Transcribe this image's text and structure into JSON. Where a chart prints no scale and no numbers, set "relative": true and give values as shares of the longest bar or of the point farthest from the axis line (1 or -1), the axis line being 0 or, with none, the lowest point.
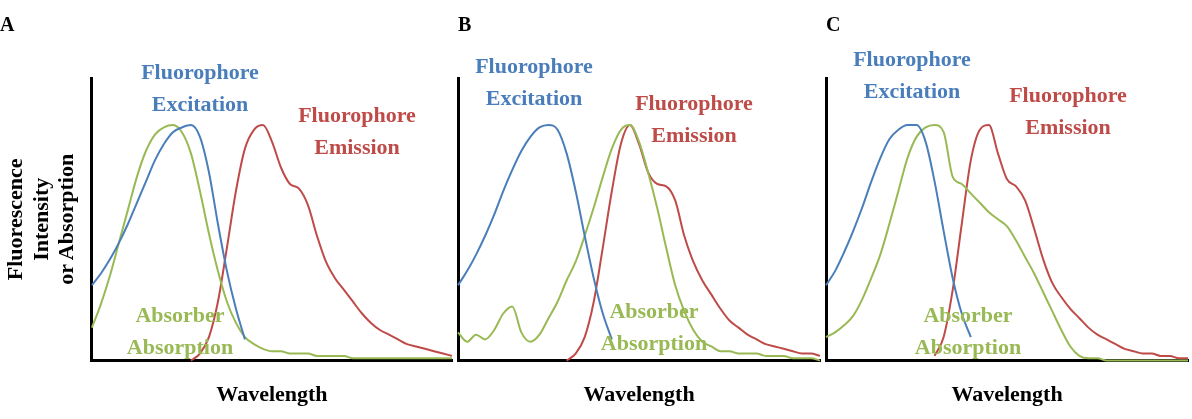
{
  "chart_data": [
    {
      "type": "line",
      "title": "A",
      "xlabel": "Wavelength",
      "ylabel": "Fluorescence\nIntensity\nor Absorption",
      "relative": true,
      "legend": false,
      "grid": false,
      "marker": "none",
      "tick_labels": false,
      "categories": [
        null,
        null,
        null,
        null,
        null,
        null,
        null,
        null,
        null,
        null,
        null,
        null,
        null,
        null,
        null,
        null,
        null,
        null,
        null,
        null,
        null,
        null,
        null,
        null,
        null,
        null,
        null,
        null,
        null,
        null,
        null,
        null,
        null,
        null,
        null,
        null,
        null,
        null,
        null,
        null,
        null
      ],
      "series": [
        {
          "name": "Fluorophore Excitation",
          "color": "#4a7ebb",
          "values": [
            0.32,
            0.37,
            0.43,
            0.5,
            0.58,
            0.67,
            0.76,
            0.85,
            0.92,
            0.97,
            0.99,
            1.0,
            0.95,
            0.8,
            0.58,
            0.38,
            0.22,
            0.09,
            null,
            null,
            null,
            null,
            null,
            null,
            null,
            null,
            null,
            null,
            null,
            null,
            null,
            null,
            null,
            null,
            null,
            null,
            null,
            null,
            null,
            null,
            null
          ]
        },
        {
          "name": "Absorber Absorption",
          "color": "#98b954",
          "values": [
            0.14,
            0.24,
            0.36,
            0.5,
            0.64,
            0.78,
            0.89,
            0.96,
            0.99,
            1.0,
            0.97,
            0.88,
            0.72,
            0.54,
            0.38,
            0.25,
            0.16,
            0.1,
            0.07,
            0.05,
            0.04,
            0.04,
            0.03,
            0.03,
            0.03,
            0.02,
            0.02,
            0.02,
            0.02,
            0.01,
            0.01,
            0.01,
            0.01,
            0.01,
            0.01,
            0.01,
            0.01,
            0.01,
            0.01,
            0.01,
            0.01
          ]
        },
        {
          "name": "Fluorophore Emission",
          "color": "#be4b48",
          "values": [
            null,
            null,
            null,
            null,
            null,
            null,
            null,
            null,
            null,
            null,
            null,
            0,
            0.03,
            0.1,
            0.25,
            0.48,
            0.72,
            0.9,
            0.98,
            1.0,
            0.93,
            0.82,
            0.75,
            0.73,
            0.66,
            0.53,
            0.42,
            0.35,
            0.3,
            0.25,
            0.2,
            0.16,
            0.13,
            0.11,
            0.09,
            0.07,
            0.06,
            0.05,
            0.04,
            0.03,
            0.02
          ]
        }
      ]
    },
    {
      "type": "line",
      "title": "B",
      "xlabel": "Wavelength",
      "relative": true,
      "legend": false,
      "grid": false,
      "marker": "none",
      "tick_labels": false,
      "categories": [
        null,
        null,
        null,
        null,
        null,
        null,
        null,
        null,
        null,
        null,
        null,
        null,
        null,
        null,
        null,
        null,
        null,
        null,
        null,
        null,
        null,
        null,
        null,
        null,
        null,
        null,
        null,
        null,
        null,
        null,
        null,
        null,
        null,
        null,
        null,
        null,
        null,
        null,
        null,
        null,
        null
      ],
      "series": [
        {
          "name": "Fluorophore Excitation",
          "color": "#4a7ebb",
          "values": [
            0.32,
            0.38,
            0.45,
            0.53,
            0.62,
            0.72,
            0.81,
            0.89,
            0.95,
            0.99,
            1.0,
            0.98,
            0.88,
            0.72,
            0.53,
            0.35,
            0.2,
            0.09,
            null,
            null,
            null,
            null,
            null,
            null,
            null,
            null,
            null,
            null,
            null,
            null,
            null,
            null,
            null,
            null,
            null,
            null,
            null,
            null,
            null,
            null,
            null
          ]
        },
        {
          "name": "Absorber Absorption",
          "color": "#98b954",
          "values": [
            0.12,
            0.08,
            0.11,
            0.09,
            0.13,
            0.2,
            0.23,
            0.12,
            0.08,
            0.11,
            0.18,
            0.25,
            0.34,
            0.42,
            0.53,
            0.65,
            0.78,
            0.9,
            0.98,
            1.0,
            0.93,
            0.8,
            0.65,
            0.48,
            0.32,
            0.21,
            0.13,
            0.08,
            0.06,
            0.04,
            0.04,
            0.03,
            0.03,
            0.03,
            0.02,
            0.02,
            0.02,
            0.01,
            0.01,
            0.01,
            0
          ]
        },
        {
          "name": "Fluorophore Emission",
          "color": "#be4b48",
          "values": [
            null,
            null,
            null,
            null,
            null,
            null,
            null,
            null,
            null,
            null,
            null,
            null,
            0,
            0.03,
            0.1,
            0.25,
            0.48,
            0.72,
            0.92,
            1.0,
            0.92,
            0.8,
            0.75,
            0.74,
            0.68,
            0.53,
            0.42,
            0.34,
            0.28,
            0.22,
            0.17,
            0.14,
            0.11,
            0.09,
            0.07,
            0.06,
            0.05,
            0.04,
            0.03,
            0.03,
            0.02
          ]
        }
      ]
    },
    {
      "type": "line",
      "title": "C",
      "xlabel": "Wavelength",
      "relative": true,
      "legend": false,
      "grid": false,
      "marker": "none",
      "tick_labels": false,
      "categories": [
        null,
        null,
        null,
        null,
        null,
        null,
        null,
        null,
        null,
        null,
        null,
        null,
        null,
        null,
        null,
        null,
        null,
        null,
        null,
        null,
        null,
        null,
        null,
        null,
        null,
        null,
        null,
        null,
        null,
        null,
        null,
        null,
        null,
        null,
        null,
        null,
        null,
        null,
        null,
        null,
        null
      ],
      "series": [
        {
          "name": "Fluorophore Excitation",
          "color": "#4a7ebb",
          "values": [
            0.32,
            0.38,
            0.46,
            0.55,
            0.65,
            0.76,
            0.86,
            0.94,
            0.98,
            1.0,
            1.0,
            0.93,
            0.76,
            0.55,
            0.35,
            0.2,
            0.1,
            null,
            null,
            null,
            null,
            null,
            null,
            null,
            null,
            null,
            null,
            null,
            null,
            null,
            null,
            null,
            null,
            null,
            null,
            null,
            null,
            null,
            null,
            null,
            null
          ]
        },
        {
          "name": "Absorber Absorption",
          "color": "#98b954",
          "values": [
            0.1,
            0.12,
            0.15,
            0.19,
            0.26,
            0.35,
            0.45,
            0.58,
            0.72,
            0.86,
            0.95,
            0.99,
            1.0,
            0.97,
            0.78,
            0.75,
            0.71,
            0.67,
            0.63,
            0.6,
            0.57,
            0.51,
            0.44,
            0.37,
            0.29,
            0.21,
            0.13,
            0.06,
            0.02,
            0.01,
            0.01,
            0,
            0,
            0,
            0,
            0,
            0,
            0,
            0,
            0,
            0
          ]
        },
        {
          "name": "Fluorophore Emission",
          "color": "#be4b48",
          "values": [
            null,
            null,
            null,
            null,
            null,
            null,
            null,
            null,
            null,
            null,
            null,
            null,
            0.02,
            0.1,
            0.3,
            0.58,
            0.85,
            0.98,
            1.0,
            0.88,
            0.77,
            0.74,
            0.68,
            0.56,
            0.43,
            0.33,
            0.27,
            0.22,
            0.18,
            0.14,
            0.11,
            0.09,
            0.07,
            0.05,
            0.04,
            0.03,
            0.03,
            0.02,
            0.02,
            0.01,
            0.01
          ]
        }
      ]
    }
  ]
}
